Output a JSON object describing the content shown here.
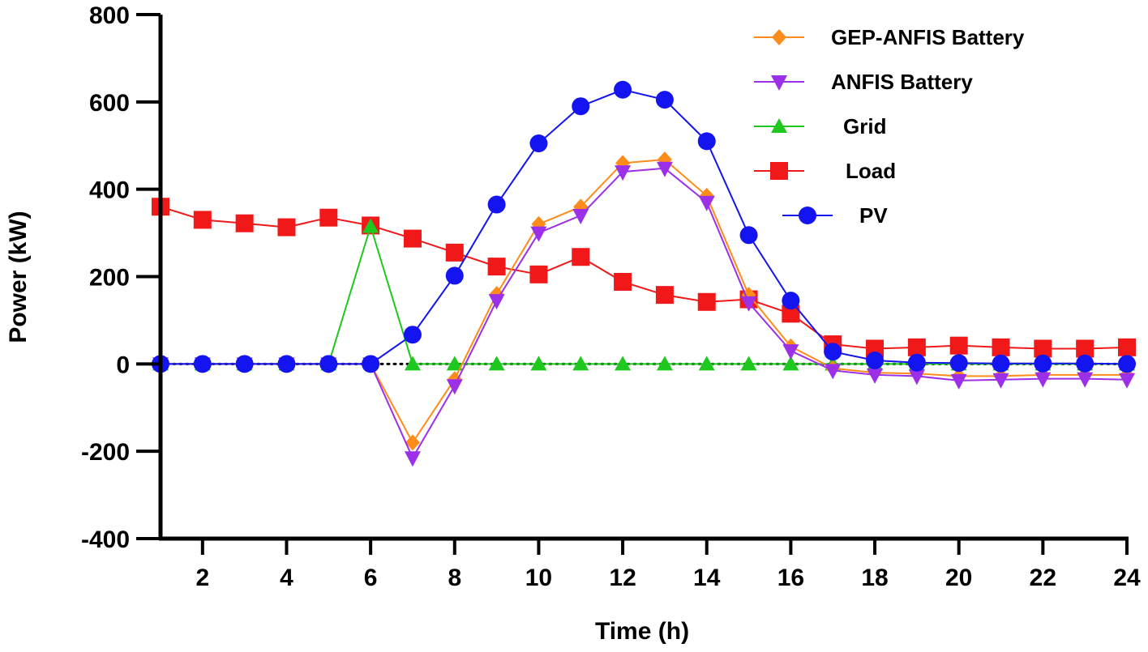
{
  "chart_data": {
    "type": "line",
    "title": "",
    "xlabel": "Time (h)",
    "ylabel": "Power (kW)",
    "xlim": [
      1,
      24
    ],
    "ylim": [
      -400,
      800
    ],
    "x_ticks": [
      2,
      4,
      6,
      8,
      10,
      12,
      14,
      16,
      18,
      20,
      22,
      24
    ],
    "y_ticks": [
      -400,
      -200,
      0,
      200,
      400,
      600,
      800
    ],
    "x_tick_labels": [
      "2",
      "4",
      "6",
      "8",
      "10",
      "12",
      "14",
      "16",
      "18",
      "20",
      "22",
      "24"
    ],
    "y_tick_labels": [
      "-400",
      "-200",
      "0",
      "200",
      "400",
      "600",
      "800"
    ],
    "zero_line": "dotted",
    "legend_position": "top-right",
    "x": [
      1,
      2,
      3,
      4,
      5,
      6,
      7,
      8,
      9,
      10,
      11,
      12,
      13,
      14,
      15,
      16,
      17,
      18,
      19,
      20,
      21,
      22,
      23,
      24
    ],
    "series": [
      {
        "name": "GEP-ANFIS Battery",
        "color": "#ff8c1a",
        "marker": "diamond",
        "values": [
          0,
          0,
          0,
          0,
          0,
          0,
          -180,
          -35,
          160,
          320,
          360,
          460,
          468,
          385,
          158,
          40,
          -10,
          -20,
          -22,
          -28,
          -28,
          -25,
          -25,
          -25
        ]
      },
      {
        "name": "ANFIS Battery",
        "color": "#9b30e8",
        "marker": "triangle-down",
        "values": [
          0,
          0,
          0,
          0,
          0,
          0,
          -215,
          -50,
          145,
          300,
          340,
          440,
          448,
          370,
          140,
          30,
          -15,
          -25,
          -28,
          -38,
          -36,
          -34,
          -34,
          -36
        ]
      },
      {
        "name": "Grid",
        "color": "#1ec81e",
        "marker": "triangle-up",
        "values": [
          0,
          0,
          0,
          0,
          0,
          315,
          0,
          0,
          0,
          0,
          0,
          0,
          0,
          0,
          0,
          0,
          0,
          0,
          0,
          0,
          0,
          0,
          0,
          0
        ]
      },
      {
        "name": "Load",
        "color": "#f01818",
        "marker": "square",
        "values": [
          360,
          330,
          322,
          313,
          335,
          317,
          287,
          255,
          223,
          205,
          245,
          188,
          158,
          142,
          148,
          115,
          45,
          35,
          38,
          42,
          38,
          35,
          35,
          38
        ]
      },
      {
        "name": "PV",
        "color": "#1414f0",
        "marker": "circle",
        "values": [
          0,
          0,
          0,
          0,
          0,
          0,
          67,
          202,
          365,
          505,
          590,
          628,
          605,
          510,
          295,
          145,
          28,
          8,
          3,
          2,
          1,
          1,
          1,
          0
        ]
      }
    ]
  }
}
